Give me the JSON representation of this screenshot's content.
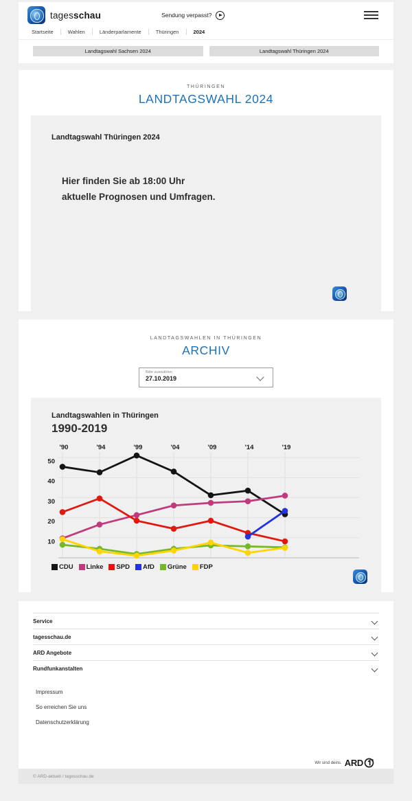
{
  "colors": {
    "accent_blue": "#1d71b8",
    "page_background": "#f0f0f0",
    "panel_gray": "#f0f0f0",
    "button_gray": "#dcdcdc"
  },
  "header": {
    "brand_regular": "tages",
    "brand_bold": "schau",
    "broadcast_link": "Sendung verpasst?",
    "breadcrumb": [
      "Startseite",
      "Wahlen",
      "Länderparlamente",
      "Thüringen",
      "2024"
    ],
    "quick_links": [
      "Landtagswahl Sachsen 2024",
      "Landtagswahl Thüringen 2024"
    ]
  },
  "election_section": {
    "kicker": "THÜRINGEN",
    "title": "LANDTAGSWAHL 2024",
    "teaser_title": "Landtagswahl Thüringen 2024",
    "teaser_line1": "Hier finden Sie ab 18:00 Uhr",
    "teaser_line2": "aktuelle Prognosen und Umfragen."
  },
  "archive_section": {
    "kicker": "LANDTAGSWAHLEN IN THÜRINGEN",
    "title": "ARCHIV",
    "select_label": "Bitte auswählen",
    "select_value": "27.10.2019"
  },
  "chart_data": {
    "type": "line",
    "title": "Landtagswahlen in Thüringen",
    "subtitle": "1990-2019",
    "unit": "percent",
    "x": [
      1990,
      1994,
      1999,
      2004,
      2009,
      2014,
      2019
    ],
    "x_tick_labels": [
      "'90",
      "'94",
      "'99",
      "'04",
      "'09",
      "'14",
      "'19"
    ],
    "y_ticks": [
      10,
      20,
      30,
      40,
      50
    ],
    "ylim": [
      0,
      55
    ],
    "grid": true,
    "legend_position": "bottom",
    "series": [
      {
        "name": "CDU",
        "color": "#141414",
        "values": [
          45.4,
          42.6,
          51.0,
          43.0,
          31.2,
          33.5,
          21.7
        ]
      },
      {
        "name": "Linke",
        "color": "#c03b7c",
        "values": [
          9.7,
          16.6,
          21.3,
          26.1,
          27.4,
          28.2,
          31.0
        ]
      },
      {
        "name": "SPD",
        "color": "#e0190f",
        "values": [
          22.8,
          29.6,
          18.5,
          14.5,
          18.5,
          12.4,
          8.2
        ]
      },
      {
        "name": "AfD",
        "color": "#2432e0",
        "values": [
          null,
          null,
          null,
          null,
          null,
          10.6,
          23.4
        ]
      },
      {
        "name": "Grüne",
        "color": "#76b82a",
        "values": [
          6.5,
          4.5,
          1.9,
          4.5,
          6.2,
          5.7,
          5.2
        ]
      },
      {
        "name": "FDP",
        "color": "#ffd400",
        "values": [
          9.3,
          3.2,
          1.1,
          3.6,
          7.6,
          2.5,
          5.0
        ]
      }
    ]
  },
  "footer": {
    "accordion": [
      "Service",
      "tagesschau.de",
      "ARD Angebote",
      "Rundfunkanstalten"
    ],
    "links": [
      "Impressum",
      "So erreichen Sie uns",
      "Datenschutzerklärung"
    ],
    "ard_claim": "Wir sind deins.",
    "ard_brand": "ARD",
    "copyright": "© ARD-aktuell / tagesschau.de"
  }
}
